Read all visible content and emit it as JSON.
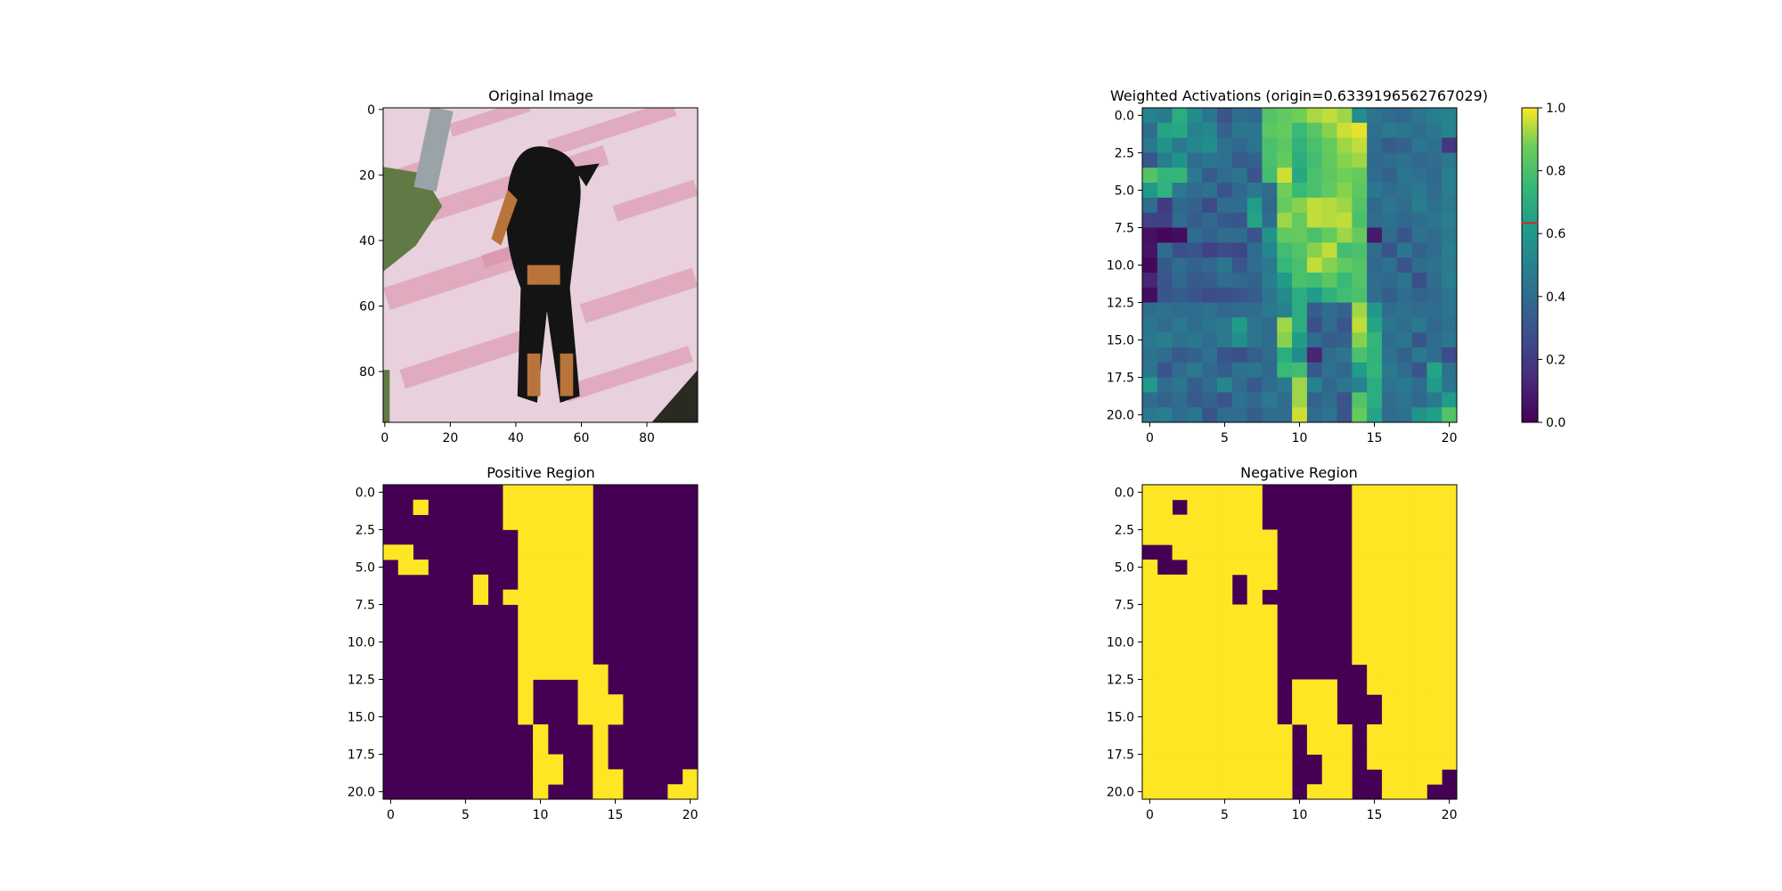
{
  "figure": {
    "panels": [
      {
        "id": "original",
        "title": "Original Image"
      },
      {
        "id": "weighted",
        "title": "Weighted Activations (origin=0.6339196562767029)"
      },
      {
        "id": "positive",
        "title": "Positive Region"
      },
      {
        "id": "negative",
        "title": "Negative Region"
      }
    ]
  },
  "chart_data": [
    {
      "type": "image",
      "title": "Original Image",
      "description_hidden": "",
      "xlim": [
        -0.5,
        95.5
      ],
      "ylim": [
        95.5,
        -0.5
      ],
      "xticks": [
        0,
        20,
        40,
        60,
        80
      ],
      "yticks": [
        0,
        20,
        40,
        60,
        80
      ],
      "colors": {
        "background": "#e8d0dc",
        "pink": "#d98aa8",
        "dog": "#141414",
        "tan": "#b8743a",
        "foliage": "#5f7a44",
        "dark": "#2a2a22"
      }
    },
    {
      "type": "heatmap",
      "title": "Weighted Activations (origin=0.6339196562767029)",
      "colormap": "viridis",
      "vmin": 0.0,
      "vmax": 1.0,
      "origin_marker": 0.6339196562767029,
      "origin_marker_color": "#d62728",
      "colorbar_ticks": [
        "0.0",
        "0.2",
        "0.4",
        "0.6",
        "0.8",
        "1.0"
      ],
      "xticks": [
        0,
        5,
        10,
        15,
        20
      ],
      "yticks": [
        "0.0",
        "2.5",
        "5.0",
        "7.5",
        "10.0",
        "12.5",
        "15.0",
        "17.5",
        "20.0"
      ],
      "grid": [
        [
          0.5,
          0.47,
          0.7,
          0.55,
          0.44,
          0.3,
          0.4,
          0.38,
          0.82,
          0.85,
          0.88,
          0.93,
          0.95,
          0.92,
          0.55,
          0.44,
          0.4,
          0.38,
          0.44,
          0.48,
          0.5
        ],
        [
          0.4,
          0.66,
          0.68,
          0.5,
          0.53,
          0.35,
          0.45,
          0.44,
          0.84,
          0.86,
          0.76,
          0.83,
          0.9,
          0.96,
          0.98,
          0.42,
          0.46,
          0.44,
          0.4,
          0.45,
          0.5
        ],
        [
          0.45,
          0.58,
          0.46,
          0.52,
          0.55,
          0.42,
          0.38,
          0.43,
          0.8,
          0.84,
          0.72,
          0.8,
          0.86,
          0.92,
          0.95,
          0.4,
          0.33,
          0.36,
          0.44,
          0.42,
          0.18
        ],
        [
          0.3,
          0.48,
          0.58,
          0.4,
          0.44,
          0.42,
          0.33,
          0.36,
          0.8,
          0.86,
          0.7,
          0.78,
          0.85,
          0.9,
          0.92,
          0.38,
          0.4,
          0.42,
          0.38,
          0.4,
          0.45
        ],
        [
          0.82,
          0.74,
          0.74,
          0.46,
          0.33,
          0.4,
          0.44,
          0.3,
          0.78,
          0.96,
          0.68,
          0.8,
          0.84,
          0.88,
          0.86,
          0.4,
          0.36,
          0.44,
          0.42,
          0.38,
          0.48
        ],
        [
          0.6,
          0.72,
          0.46,
          0.4,
          0.42,
          0.3,
          0.38,
          0.46,
          0.4,
          0.88,
          0.76,
          0.8,
          0.85,
          0.9,
          0.84,
          0.45,
          0.4,
          0.42,
          0.46,
          0.4,
          0.48
        ],
        [
          0.4,
          0.2,
          0.38,
          0.36,
          0.26,
          0.4,
          0.4,
          0.62,
          0.38,
          0.86,
          0.9,
          0.95,
          0.94,
          0.92,
          0.82,
          0.38,
          0.44,
          0.4,
          0.48,
          0.42,
          0.46
        ],
        [
          0.22,
          0.22,
          0.4,
          0.34,
          0.38,
          0.32,
          0.3,
          0.66,
          0.4,
          0.92,
          0.86,
          0.95,
          0.94,
          0.95,
          0.8,
          0.4,
          0.42,
          0.38,
          0.4,
          0.44,
          0.48
        ],
        [
          0.05,
          0.02,
          0.04,
          0.4,
          0.36,
          0.4,
          0.4,
          0.3,
          0.58,
          0.85,
          0.86,
          0.8,
          0.86,
          0.92,
          0.86,
          0.08,
          0.4,
          0.3,
          0.42,
          0.4,
          0.46
        ],
        [
          0.06,
          0.4,
          0.28,
          0.3,
          0.22,
          0.26,
          0.24,
          0.4,
          0.52,
          0.78,
          0.82,
          0.9,
          0.95,
          0.78,
          0.8,
          0.4,
          0.3,
          0.44,
          0.36,
          0.4,
          0.48
        ],
        [
          0.02,
          0.32,
          0.4,
          0.36,
          0.38,
          0.44,
          0.3,
          0.4,
          0.46,
          0.75,
          0.8,
          0.95,
          0.9,
          0.85,
          0.82,
          0.38,
          0.42,
          0.3,
          0.4,
          0.42,
          0.46
        ],
        [
          0.12,
          0.3,
          0.38,
          0.32,
          0.34,
          0.4,
          0.38,
          0.36,
          0.48,
          0.62,
          0.8,
          0.78,
          0.84,
          0.76,
          0.82,
          0.4,
          0.38,
          0.44,
          0.28,
          0.4,
          0.48
        ],
        [
          0.04,
          0.3,
          0.33,
          0.3,
          0.26,
          0.28,
          0.3,
          0.34,
          0.44,
          0.54,
          0.7,
          0.62,
          0.72,
          0.78,
          0.8,
          0.4,
          0.34,
          0.4,
          0.36,
          0.38,
          0.44
        ],
        [
          0.4,
          0.42,
          0.4,
          0.4,
          0.42,
          0.38,
          0.4,
          0.4,
          0.46,
          0.5,
          0.7,
          0.34,
          0.4,
          0.36,
          0.92,
          0.6,
          0.4,
          0.42,
          0.4,
          0.4,
          0.44
        ],
        [
          0.44,
          0.4,
          0.46,
          0.4,
          0.44,
          0.46,
          0.62,
          0.44,
          0.4,
          0.92,
          0.7,
          0.28,
          0.4,
          0.3,
          0.95,
          0.66,
          0.44,
          0.4,
          0.46,
          0.38,
          0.42
        ],
        [
          0.45,
          0.48,
          0.42,
          0.45,
          0.4,
          0.46,
          0.56,
          0.44,
          0.4,
          0.9,
          0.62,
          0.4,
          0.34,
          0.36,
          0.9,
          0.74,
          0.4,
          0.44,
          0.3,
          0.4,
          0.44
        ],
        [
          0.42,
          0.4,
          0.32,
          0.36,
          0.42,
          0.3,
          0.28,
          0.34,
          0.4,
          0.7,
          0.54,
          0.12,
          0.4,
          0.44,
          0.8,
          0.72,
          0.42,
          0.36,
          0.46,
          0.4,
          0.26
        ],
        [
          0.44,
          0.3,
          0.4,
          0.46,
          0.38,
          0.34,
          0.42,
          0.44,
          0.38,
          0.76,
          0.78,
          0.32,
          0.42,
          0.38,
          0.62,
          0.74,
          0.46,
          0.4,
          0.3,
          0.66,
          0.42
        ],
        [
          0.6,
          0.4,
          0.44,
          0.34,
          0.4,
          0.52,
          0.4,
          0.32,
          0.4,
          0.46,
          0.92,
          0.5,
          0.38,
          0.44,
          0.5,
          0.7,
          0.44,
          0.46,
          0.4,
          0.62,
          0.44
        ],
        [
          0.4,
          0.36,
          0.4,
          0.32,
          0.36,
          0.3,
          0.42,
          0.38,
          0.46,
          0.4,
          0.92,
          0.36,
          0.4,
          0.3,
          0.82,
          0.7,
          0.4,
          0.44,
          0.38,
          0.46,
          0.62
        ],
        [
          0.46,
          0.48,
          0.4,
          0.44,
          0.3,
          0.4,
          0.4,
          0.34,
          0.4,
          0.4,
          0.96,
          0.4,
          0.44,
          0.3,
          0.86,
          0.66,
          0.4,
          0.42,
          0.58,
          0.64,
          0.82
        ]
      ]
    },
    {
      "type": "heatmap",
      "title": "Positive Region",
      "colormap": "binary-viridis",
      "low_color": "#440154",
      "high_color": "#fde725",
      "xticks": [
        0,
        5,
        10,
        15,
        20
      ],
      "yticks": [
        "0.0",
        "2.5",
        "5.0",
        "7.5",
        "10.0",
        "12.5",
        "15.0",
        "17.5",
        "20.0"
      ],
      "rows": [
        "000000001111110000000",
        "001000001111110000000",
        "000000001111110000000",
        "000000000111110000000",
        "110000000111110000000",
        "011000000111110000000",
        "000000100111110000000",
        "000000101111110000000",
        "000000000111110000000",
        "000000000111110000000",
        "000000000111110000000",
        "000000000111110000000",
        "000000000111111000000",
        "000000000100011000000",
        "000000000100011100000",
        "000000000100011100000",
        "000000000010001000000",
        "000000000010001000000",
        "000000000011001000000",
        "000000000011001100001",
        "000000000010001100011"
      ]
    },
    {
      "type": "heatmap",
      "title": "Negative Region",
      "colormap": "binary-viridis",
      "low_color": "#440154",
      "high_color": "#fde725",
      "xticks": [
        0,
        5,
        10,
        15,
        20
      ],
      "yticks": [
        "0.0",
        "2.5",
        "5.0",
        "7.5",
        "10.0",
        "12.5",
        "15.0",
        "17.5",
        "20.0"
      ],
      "rows": [
        "111111110000001111111",
        "110111110000001111111",
        "111111110000001111111",
        "111111111000001111111",
        "001111111000001111111",
        "100111111000001111111",
        "111111011000001111111",
        "111111010000001111111",
        "111111111000001111111",
        "111111111000001111111",
        "111111111000001111111",
        "111111111000001111111",
        "111111111000000111111",
        "111111111011100111111",
        "111111111011100011111",
        "111111111011100011111",
        "111111111101110111111",
        "111111111101110111111",
        "111111111100110111111",
        "111111111100110011110",
        "111111111101110011100"
      ]
    }
  ]
}
